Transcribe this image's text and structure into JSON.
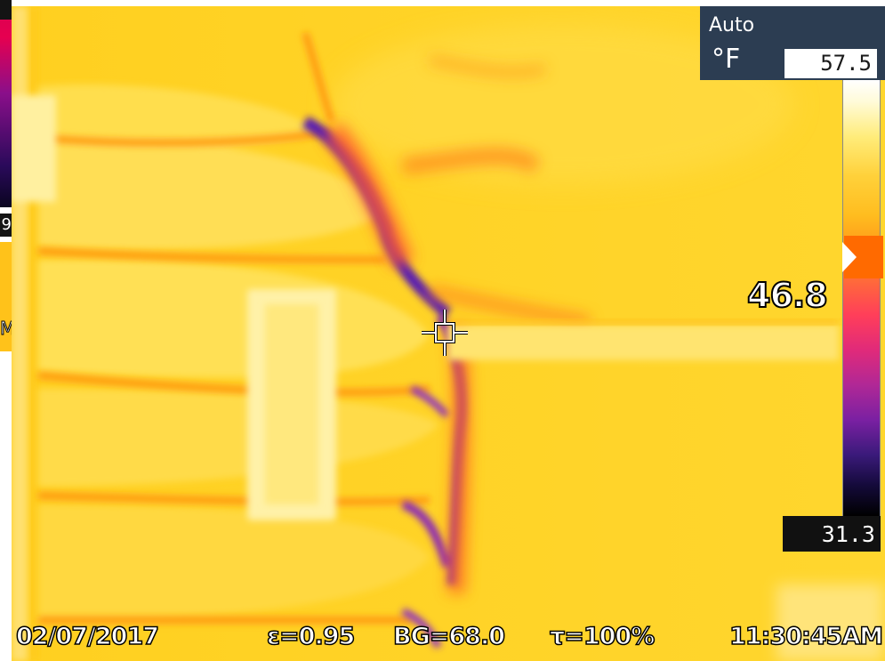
{
  "camera": {
    "range_mode": "Auto",
    "unit": "°F",
    "scale_max": "57.5",
    "scale_min": "31.3",
    "spot_temperature": "46.8"
  },
  "status_bar": {
    "date": "02/07/2017",
    "emissivity": "ε=0.95",
    "background_temp": "BG=68.0",
    "transmission": "τ=100%",
    "time": "11:30:45AM"
  },
  "left_sliver": {
    "partial_text_1": "9",
    "partial_text_2": "M"
  },
  "colors": {
    "info_box": "#2c3d52",
    "scale_marker": "#ff6a00",
    "thermal_warm": "#ffd326",
    "thermal_cold": "#6a1aa0"
  },
  "icons": {
    "crosshair": "spot-crosshair-icon",
    "marker": "scale-marker-arrow-icon"
  }
}
